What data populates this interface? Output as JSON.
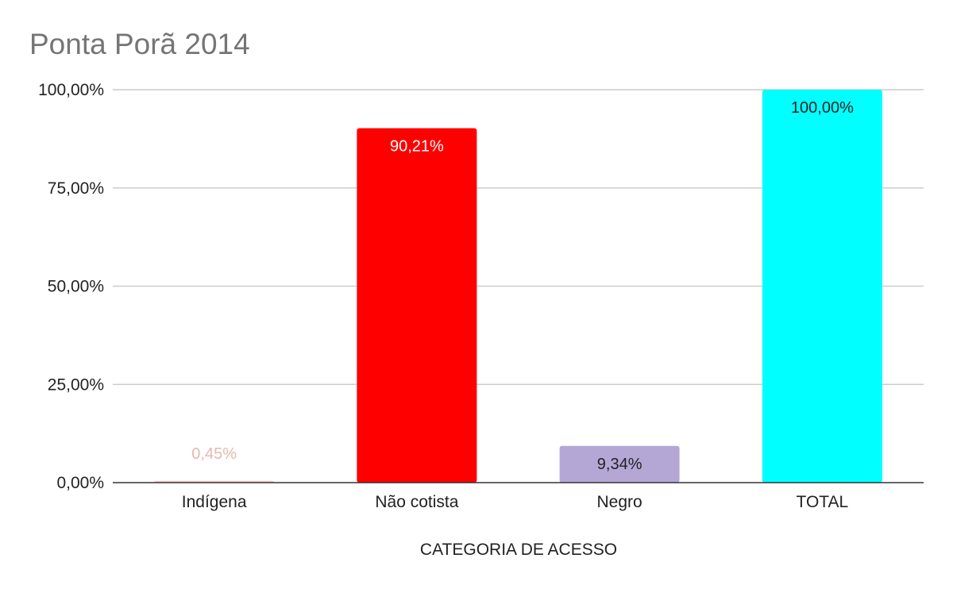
{
  "chart_data": {
    "type": "bar",
    "title": "Ponta Porã 2014",
    "xlabel": "CATEGORIA DE ACESSO",
    "ylabel": "",
    "ylim": [
      0,
      100
    ],
    "y_ticks": [
      "0,00%",
      "25,00%",
      "50,00%",
      "75,00%",
      "100,00%"
    ],
    "y_tick_values": [
      0,
      25,
      50,
      75,
      100
    ],
    "grid": true,
    "legend": "none",
    "categories": [
      "Indígena",
      "Não cotista",
      "Negro",
      "TOTAL"
    ],
    "values": [
      0.45,
      90.21,
      9.34,
      100.0
    ],
    "data_labels": [
      "0,45%",
      "90,21%",
      "9,34%",
      "100,00%"
    ],
    "colors": [
      "#f4cccc",
      "#ff0000",
      "#b4a7d6",
      "#00ffff"
    ],
    "label_colors": [
      "#e6b8af",
      "#ffffff",
      "#222222",
      "#222222"
    ]
  }
}
